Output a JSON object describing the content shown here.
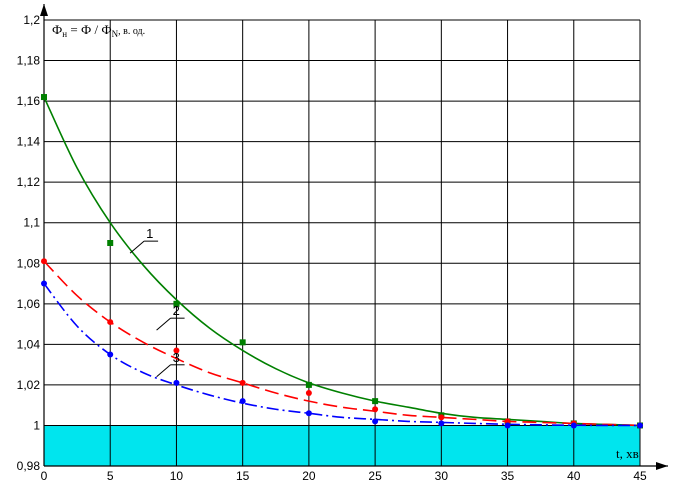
{
  "chart_data": {
    "type": "line",
    "title": "",
    "ylabel": {
      "phi_h": "Ф",
      "sub_h": "н",
      "equals": " = Ф / Ф",
      "sub_n": "N",
      "unit": ", в. од."
    },
    "xlabel": "t, хв",
    "xlim": [
      0,
      45
    ],
    "ylim": [
      0.98,
      1.2
    ],
    "xticks": [
      0,
      5,
      10,
      15,
      20,
      25,
      30,
      35,
      40,
      45
    ],
    "yticks": [
      0.98,
      1.0,
      1.02,
      1.04,
      1.06,
      1.08,
      1.1,
      1.12,
      1.14,
      1.16,
      1.18,
      1.2
    ],
    "xtick_labels": [
      "0",
      "5",
      "10",
      "15",
      "20",
      "25",
      "30",
      "35",
      "40",
      "45"
    ],
    "ytick_labels": [
      "0,98",
      "1",
      "1,02",
      "1,04",
      "1,06",
      "1,08",
      "1,1",
      "1,12",
      "1,14",
      "1,16",
      "1,18",
      "1,2"
    ],
    "grid": true,
    "band": {
      "from": 0.98,
      "to": 1.0,
      "color": "#00e5ee"
    },
    "series": [
      {
        "name": "1",
        "color": "#008000",
        "dash": "solid",
        "marker": "square",
        "points": {
          "x": [
            0,
            5,
            10,
            15,
            20,
            25,
            30,
            35,
            40,
            45
          ],
          "y": [
            1.162,
            1.09,
            1.06,
            1.041,
            1.02,
            1.012,
            1.005,
            1.002,
            1.001,
            1.0
          ]
        },
        "curve": {
          "x": [
            0,
            2.5,
            5,
            7.5,
            10,
            12.5,
            15,
            17.5,
            20,
            22.5,
            25,
            27.5,
            30,
            32.5,
            35,
            37.5,
            40,
            42.5,
            45
          ],
          "y": [
            1.162,
            1.127,
            1.1,
            1.079,
            1.062,
            1.048,
            1.037,
            1.028,
            1.021,
            1.016,
            1.012,
            1.009,
            1.006,
            1.004,
            1.003,
            1.002,
            1.001,
            1.0005,
            1.0
          ]
        },
        "label_at": {
          "x": 6.5,
          "y": 1.085
        }
      },
      {
        "name": "2",
        "color": "#ff0000",
        "dash": "14,6",
        "marker": "circle",
        "points": {
          "x": [
            0,
            5,
            10,
            15,
            20,
            25,
            30,
            35,
            40,
            45
          ],
          "y": [
            1.081,
            1.051,
            1.037,
            1.021,
            1.016,
            1.008,
            1.004,
            1.002,
            1.001,
            1.0
          ]
        },
        "curve": {
          "x": [
            0,
            2.5,
            5,
            7.5,
            10,
            12.5,
            15,
            17.5,
            20,
            22.5,
            25,
            27.5,
            30,
            32.5,
            35,
            37.5,
            40,
            42.5,
            45
          ],
          "y": [
            1.081,
            1.064,
            1.051,
            1.041,
            1.033,
            1.026,
            1.021,
            1.016,
            1.012,
            1.009,
            1.007,
            1.005,
            1.004,
            1.003,
            1.002,
            1.0015,
            1.001,
            1.0005,
            1.0
          ]
        },
        "label_at": {
          "x": 8.5,
          "y": 1.047
        }
      },
      {
        "name": "3",
        "color": "#0000ff",
        "dash": "12,4,2,4",
        "marker": "circle",
        "points": {
          "x": [
            0,
            5,
            10,
            15,
            20,
            25,
            30,
            35,
            40,
            45
          ],
          "y": [
            1.07,
            1.035,
            1.021,
            1.012,
            1.006,
            1.002,
            1.001,
            1.0,
            1.0,
            1.0
          ]
        },
        "curve": {
          "x": [
            0,
            2.5,
            5,
            7.5,
            10,
            12.5,
            15,
            17.5,
            20,
            22.5,
            25,
            27.5,
            30,
            32.5,
            35,
            37.5,
            40,
            42.5,
            45
          ],
          "y": [
            1.07,
            1.049,
            1.035,
            1.026,
            1.02,
            1.015,
            1.011,
            1.008,
            1.006,
            1.004,
            1.003,
            1.002,
            1.0015,
            1.001,
            1.0006,
            1.0003,
            1.0001,
            1.0,
            1.0
          ]
        },
        "label_at": {
          "x": 8.5,
          "y": 1.024
        }
      }
    ]
  }
}
